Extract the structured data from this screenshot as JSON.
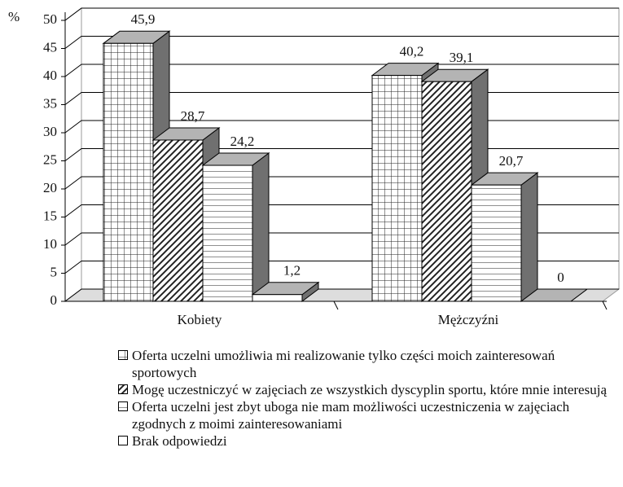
{
  "chart_data": {
    "type": "bar3d",
    "y_label": "%",
    "categories": [
      "Kobiety",
      "Mężczyźni"
    ],
    "series": [
      {
        "name": "Oferta uczelni umożliwia mi realizowanie tylko części moich zainteresowań sportowych",
        "pattern": "grid",
        "values": [
          45.9,
          40.2
        ],
        "value_labels": [
          "45,9",
          "40,2"
        ]
      },
      {
        "name": "Mogę uczestniczyć w zajęciach ze wszystkich dyscyplin sportu, które mnie interesują",
        "pattern": "diagonal",
        "values": [
          28.7,
          39.1
        ],
        "value_labels": [
          "28,7",
          "39,1"
        ]
      },
      {
        "name": "Oferta uczelni jest zbyt uboga nie mam możliwości uczestniczenia w zajęciach zgodnych z moimi zainteresowaniami",
        "pattern": "horizontal",
        "values": [
          24.2,
          20.7
        ],
        "value_labels": [
          "24,2",
          "20,7"
        ]
      },
      {
        "name": "Brak odpowiedzi",
        "pattern": "none",
        "values": [
          1.2,
          0
        ],
        "value_labels": [
          "1,2",
          "0"
        ]
      }
    ],
    "ylim": [
      0,
      50
    ],
    "yticks": [
      0,
      5,
      10,
      15,
      20,
      25,
      30,
      35,
      40,
      45,
      50
    ],
    "grid": true
  }
}
